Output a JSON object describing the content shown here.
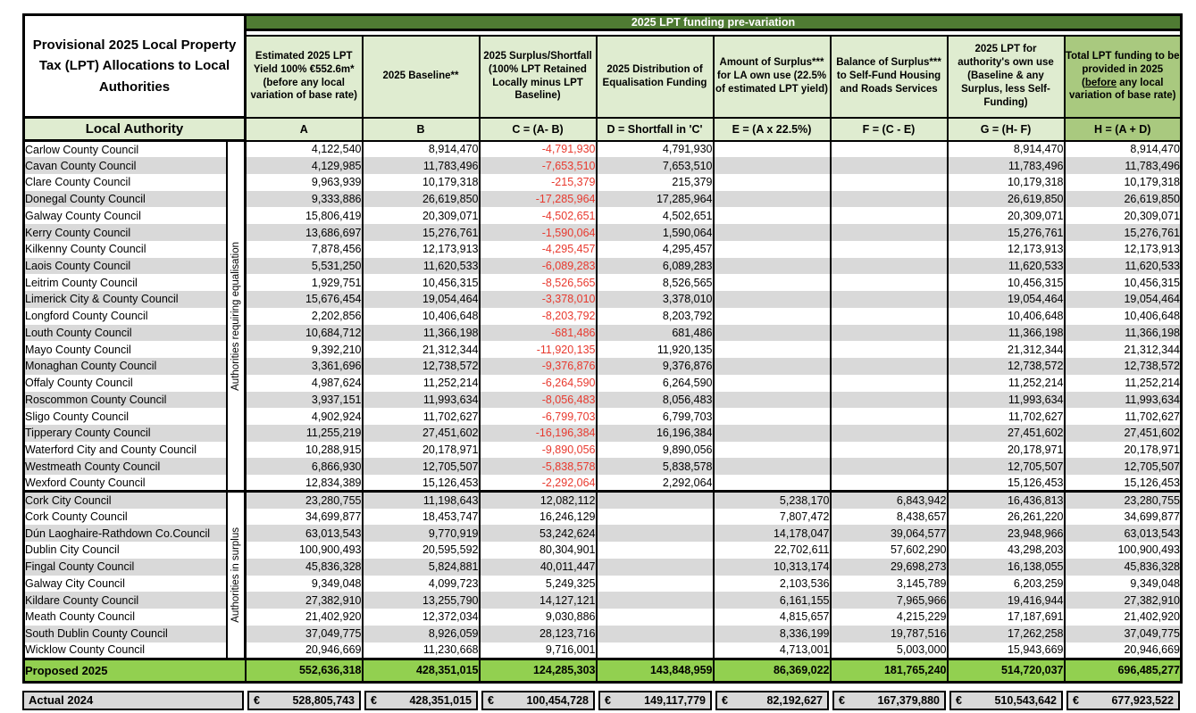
{
  "title": "Provisional 2025 Local Property Tax (LPT) Allocations to Local Authorities",
  "band_title": "2025 LPT funding pre-variation",
  "local_authority_label": "Local Authority",
  "colors": {
    "band_green": "#4f7b33",
    "header_light_green": "#dfecd0",
    "header_medium_green": "#a9c97f",
    "total_row_green": "#92d050",
    "stripe_gray": "#d9d9d9",
    "actual_row_gray": "#d9d9d9",
    "negative_red": "#e8392e"
  },
  "table": {
    "columns": [
      {
        "key": "A",
        "header": "Estimated 2025 LPT Yield 100% €552.6m* (before any local variation of base rate)",
        "formula": "A"
      },
      {
        "key": "B",
        "header": "2025 Baseline**",
        "formula": "B"
      },
      {
        "key": "C",
        "header": "2025 Surplus/Shortfall (100% LPT Retained Locally minus LPT Baseline)",
        "formula": "C = (A- B)"
      },
      {
        "key": "D",
        "header": "2025 Distribution of Equalisation Funding",
        "formula": "D =  Shortfall in 'C'"
      },
      {
        "key": "E",
        "header": "Amount of Surplus*** for LA own use (22.5% of estimated LPT yield)",
        "formula": "E = (A x 22.5%)"
      },
      {
        "key": "F",
        "header": "Balance of Surplus*** to Self-Fund Housing and Roads Services",
        "formula": "F = (C - E)"
      },
      {
        "key": "G",
        "header": "2025 LPT for authority's own use (Baseline & any Surplus, less Self-Funding)",
        "formula": "G = (H- F)"
      },
      {
        "key": "H",
        "header_pre": "Total LPT funding to be provided in 2025 (",
        "header_underlined": "before",
        "header_post": " any local variation of base rate)",
        "formula": "H = (A + D)"
      }
    ],
    "groups": [
      {
        "label": "Authorities requiring equalisation",
        "rows": [
          {
            "name": "Carlow County Council",
            "values": [
              "4,122,540",
              "8,914,470",
              "-4,791,930",
              "4,791,930",
              "",
              "",
              "8,914,470",
              "8,914,470"
            ]
          },
          {
            "name": "Cavan County Council",
            "values": [
              "4,129,985",
              "11,783,496",
              "-7,653,510",
              "7,653,510",
              "",
              "",
              "11,783,496",
              "11,783,496"
            ]
          },
          {
            "name": "Clare County Council",
            "values": [
              "9,963,939",
              "10,179,318",
              "-215,379",
              "215,379",
              "",
              "",
              "10,179,318",
              "10,179,318"
            ]
          },
          {
            "name": "Donegal County Council",
            "values": [
              "9,333,886",
              "26,619,850",
              "-17,285,964",
              "17,285,964",
              "",
              "",
              "26,619,850",
              "26,619,850"
            ]
          },
          {
            "name": "Galway County Council",
            "values": [
              "15,806,419",
              "20,309,071",
              "-4,502,651",
              "4,502,651",
              "",
              "",
              "20,309,071",
              "20,309,071"
            ]
          },
          {
            "name": "Kerry County Council",
            "values": [
              "13,686,697",
              "15,276,761",
              "-1,590,064",
              "1,590,064",
              "",
              "",
              "15,276,761",
              "15,276,761"
            ]
          },
          {
            "name": "Kilkenny County Council",
            "values": [
              "7,878,456",
              "12,173,913",
              "-4,295,457",
              "4,295,457",
              "",
              "",
              "12,173,913",
              "12,173,913"
            ]
          },
          {
            "name": "Laois County Council",
            "values": [
              "5,531,250",
              "11,620,533",
              "-6,089,283",
              "6,089,283",
              "",
              "",
              "11,620,533",
              "11,620,533"
            ]
          },
          {
            "name": "Leitrim County Council",
            "values": [
              "1,929,751",
              "10,456,315",
              "-8,526,565",
              "8,526,565",
              "",
              "",
              "10,456,315",
              "10,456,315"
            ]
          },
          {
            "name": "Limerick City & County Council",
            "values": [
              "15,676,454",
              "19,054,464",
              "-3,378,010",
              "3,378,010",
              "",
              "",
              "19,054,464",
              "19,054,464"
            ]
          },
          {
            "name": "Longford County Council",
            "values": [
              "2,202,856",
              "10,406,648",
              "-8,203,792",
              "8,203,792",
              "",
              "",
              "10,406,648",
              "10,406,648"
            ]
          },
          {
            "name": "Louth County Council",
            "values": [
              "10,684,712",
              "11,366,198",
              "-681,486",
              "681,486",
              "",
              "",
              "11,366,198",
              "11,366,198"
            ]
          },
          {
            "name": "Mayo County Council",
            "values": [
              "9,392,210",
              "21,312,344",
              "-11,920,135",
              "11,920,135",
              "",
              "",
              "21,312,344",
              "21,312,344"
            ]
          },
          {
            "name": "Monaghan County Council",
            "values": [
              "3,361,696",
              "12,738,572",
              "-9,376,876",
              "9,376,876",
              "",
              "",
              "12,738,572",
              "12,738,572"
            ]
          },
          {
            "name": "Offaly County Council",
            "values": [
              "4,987,624",
              "11,252,214",
              "-6,264,590",
              "6,264,590",
              "",
              "",
              "11,252,214",
              "11,252,214"
            ]
          },
          {
            "name": "Roscommon County Council",
            "values": [
              "3,937,151",
              "11,993,634",
              "-8,056,483",
              "8,056,483",
              "",
              "",
              "11,993,634",
              "11,993,634"
            ]
          },
          {
            "name": "Sligo County Council",
            "values": [
              "4,902,924",
              "11,702,627",
              "-6,799,703",
              "6,799,703",
              "",
              "",
              "11,702,627",
              "11,702,627"
            ]
          },
          {
            "name": "Tipperary County Council",
            "values": [
              "11,255,219",
              "27,451,602",
              "-16,196,384",
              "16,196,384",
              "",
              "",
              "27,451,602",
              "27,451,602"
            ]
          },
          {
            "name": "Waterford City and County Council",
            "values": [
              "10,288,915",
              "20,178,971",
              "-9,890,056",
              "9,890,056",
              "",
              "",
              "20,178,971",
              "20,178,971"
            ]
          },
          {
            "name": "Westmeath County Council",
            "values": [
              "6,866,930",
              "12,705,507",
              "-5,838,578",
              "5,838,578",
              "",
              "",
              "12,705,507",
              "12,705,507"
            ]
          },
          {
            "name": "Wexford County Council",
            "values": [
              "12,834,389",
              "15,126,453",
              "-2,292,064",
              "2,292,064",
              "",
              "",
              "15,126,453",
              "15,126,453"
            ]
          }
        ]
      },
      {
        "label": "Authorities in surplus",
        "rows": [
          {
            "name": "Cork City Council",
            "values": [
              "23,280,755",
              "11,198,643",
              "12,082,112",
              "",
              "5,238,170",
              "6,843,942",
              "16,436,813",
              "23,280,755"
            ]
          },
          {
            "name": "Cork County Council",
            "values": [
              "34,699,877",
              "18,453,747",
              "16,246,129",
              "",
              "7,807,472",
              "8,438,657",
              "26,261,220",
              "34,699,877"
            ]
          },
          {
            "name": "Dún Laoghaire-Rathdown Co.Council",
            "values": [
              "63,013,543",
              "9,770,919",
              "53,242,624",
              "",
              "14,178,047",
              "39,064,577",
              "23,948,966",
              "63,013,543"
            ]
          },
          {
            "name": "Dublin City Council",
            "values": [
              "100,900,493",
              "20,595,592",
              "80,304,901",
              "",
              "22,702,611",
              "57,602,290",
              "43,298,203",
              "100,900,493"
            ]
          },
          {
            "name": "Fingal County Council",
            "values": [
              "45,836,328",
              "5,824,881",
              "40,011,447",
              "",
              "10,313,174",
              "29,698,273",
              "16,138,055",
              "45,836,328"
            ]
          },
          {
            "name": "Galway City Council",
            "values": [
              "9,349,048",
              "4,099,723",
              "5,249,325",
              "",
              "2,103,536",
              "3,145,789",
              "6,203,259",
              "9,349,048"
            ]
          },
          {
            "name": "Kildare County Council",
            "values": [
              "27,382,910",
              "13,255,790",
              "14,127,121",
              "",
              "6,161,155",
              "7,965,966",
              "19,416,944",
              "27,382,910"
            ]
          },
          {
            "name": "Meath County Council",
            "values": [
              "21,402,920",
              "12,372,034",
              "9,030,886",
              "",
              "4,815,657",
              "4,215,229",
              "17,187,691",
              "21,402,920"
            ]
          },
          {
            "name": "South Dublin County Council",
            "values": [
              "37,049,775",
              "8,926,059",
              "28,123,716",
              "",
              "8,336,199",
              "19,787,516",
              "17,262,258",
              "37,049,775"
            ]
          },
          {
            "name": "Wicklow County Council",
            "values": [
              "20,946,669",
              "11,230,668",
              "9,716,001",
              "",
              "4,713,001",
              "5,003,000",
              "15,943,669",
              "20,946,669"
            ]
          }
        ]
      }
    ]
  },
  "proposed": {
    "label": "Proposed 2025",
    "values": [
      "552,636,318",
      "428,351,015",
      "124,285,303",
      "143,848,959",
      "86,369,022",
      "181,765,240",
      "514,720,037",
      "696,485,277"
    ]
  },
  "actual": {
    "label": "Actual 2024",
    "currency": "€",
    "values": [
      "528,805,743",
      "428,351,015",
      "100,454,728",
      "149,117,779",
      "82,192,627",
      "167,379,880",
      "510,543,642",
      "677,923,522"
    ]
  }
}
